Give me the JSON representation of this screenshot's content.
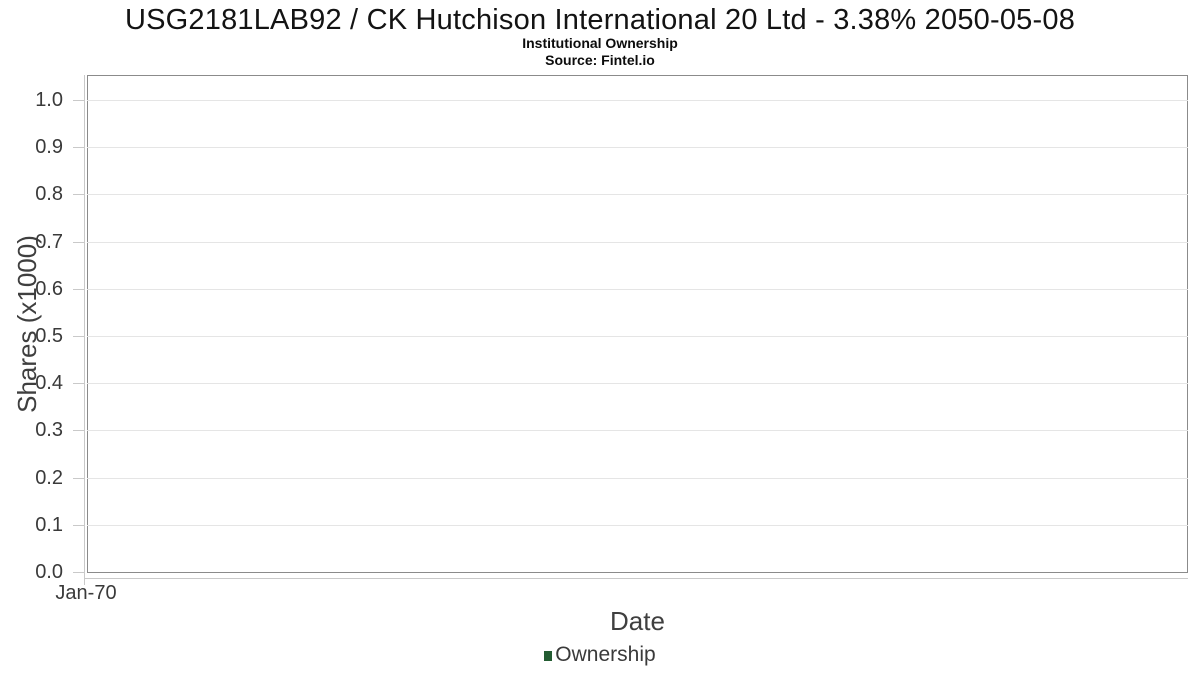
{
  "chart_data": {
    "type": "bar",
    "title": "USG2181LAB92 / CK Hutchison International 20 Ltd - 3.38% 2050-05-08",
    "subtitle": "Institutional Ownership",
    "source": "Source: Fintel.io",
    "xlabel": "Date",
    "ylabel": "Shares (x1000)",
    "x_ticks": [
      "Jan-70"
    ],
    "y_ticks": [
      0.0,
      0.1,
      0.2,
      0.3,
      0.4,
      0.5,
      0.6,
      0.7,
      0.8,
      0.9,
      1.0
    ],
    "y_tick_labels": [
      "0.0",
      "0.1",
      "0.2",
      "0.3",
      "0.4",
      "0.5",
      "0.6",
      "0.7",
      "0.8",
      "0.9",
      "1.0"
    ],
    "ylim": [
      0,
      1.055
    ],
    "grid": "horizontal-only",
    "legend_position": "bottom-center",
    "series": [
      {
        "name": "Ownership",
        "color": "#235c32",
        "values": []
      }
    ]
  },
  "colors": {
    "frame": "#8b8b8b",
    "axis_line": "#c9c9c9",
    "gridline": "#e5e5e5",
    "tick_text": "#3a3a3a",
    "axis_title_text": "#3f3f3f",
    "legend_marker": "#235c32",
    "title_text": "#131313"
  }
}
